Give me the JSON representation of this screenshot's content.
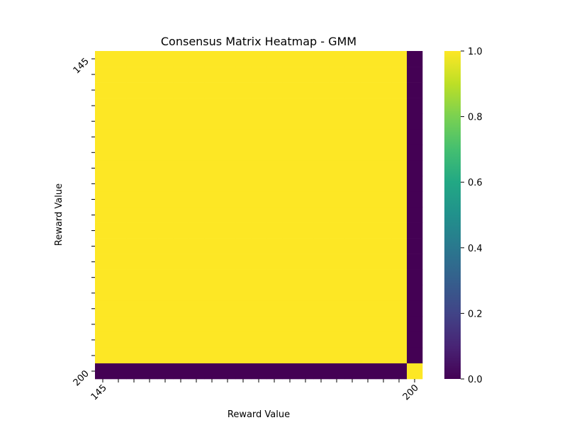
{
  "chart_data": {
    "type": "heatmap",
    "title": "Consensus Matrix Heatmap - GMM",
    "xlabel": "Reward Value",
    "ylabel": "Reward Value",
    "rows": 21,
    "cols": 21,
    "x_tick_labels": [
      "145",
      "200"
    ],
    "y_tick_labels": [
      "145",
      "200"
    ],
    "x_tick_count": 21,
    "y_tick_count": 21,
    "matrix_description": "block structure: rows/cols 1-20 all value 1.0; last row/col 0.0 against others; bottom-right cell 1.0",
    "colorbar": {
      "min": 0.0,
      "max": 1.0,
      "ticks": [
        "0.0",
        "0.2",
        "0.4",
        "0.6",
        "0.8",
        "1.0"
      ],
      "colormap": "viridis"
    }
  }
}
